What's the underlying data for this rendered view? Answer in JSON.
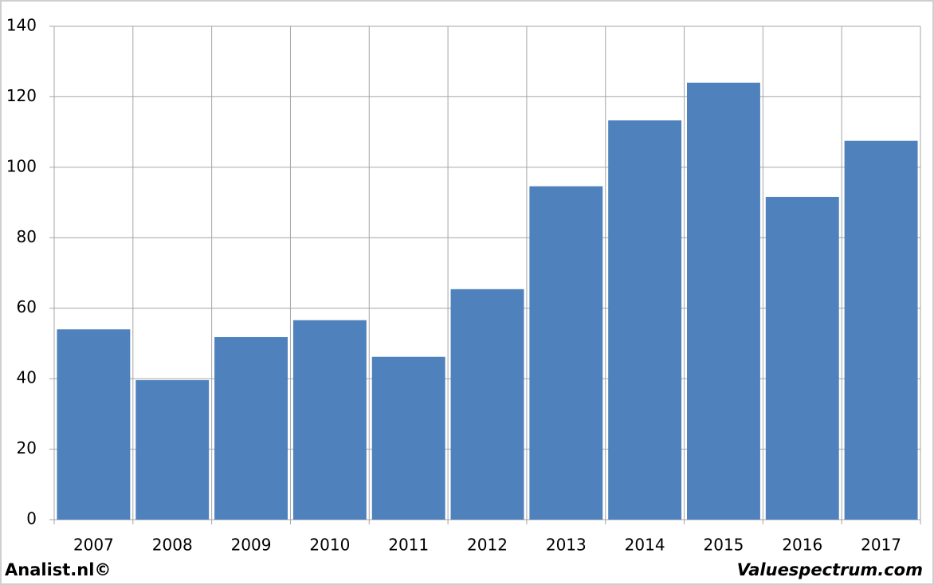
{
  "chart_data": {
    "type": "bar",
    "categories": [
      "2007",
      "2008",
      "2009",
      "2010",
      "2011",
      "2012",
      "2013",
      "2014",
      "2015",
      "2016",
      "2017"
    ],
    "values": [
      54,
      39.6,
      51.8,
      56.6,
      46.2,
      65.4,
      94.6,
      113.3,
      124,
      91.6,
      107.5
    ],
    "color": "#4f81bd",
    "ylim": [
      0,
      140
    ],
    "yticks": [
      0,
      20,
      40,
      60,
      80,
      100,
      120,
      140
    ],
    "grid": true
  },
  "footer": {
    "left": "Analist.nl©",
    "right": "Valuespectrum.com"
  }
}
